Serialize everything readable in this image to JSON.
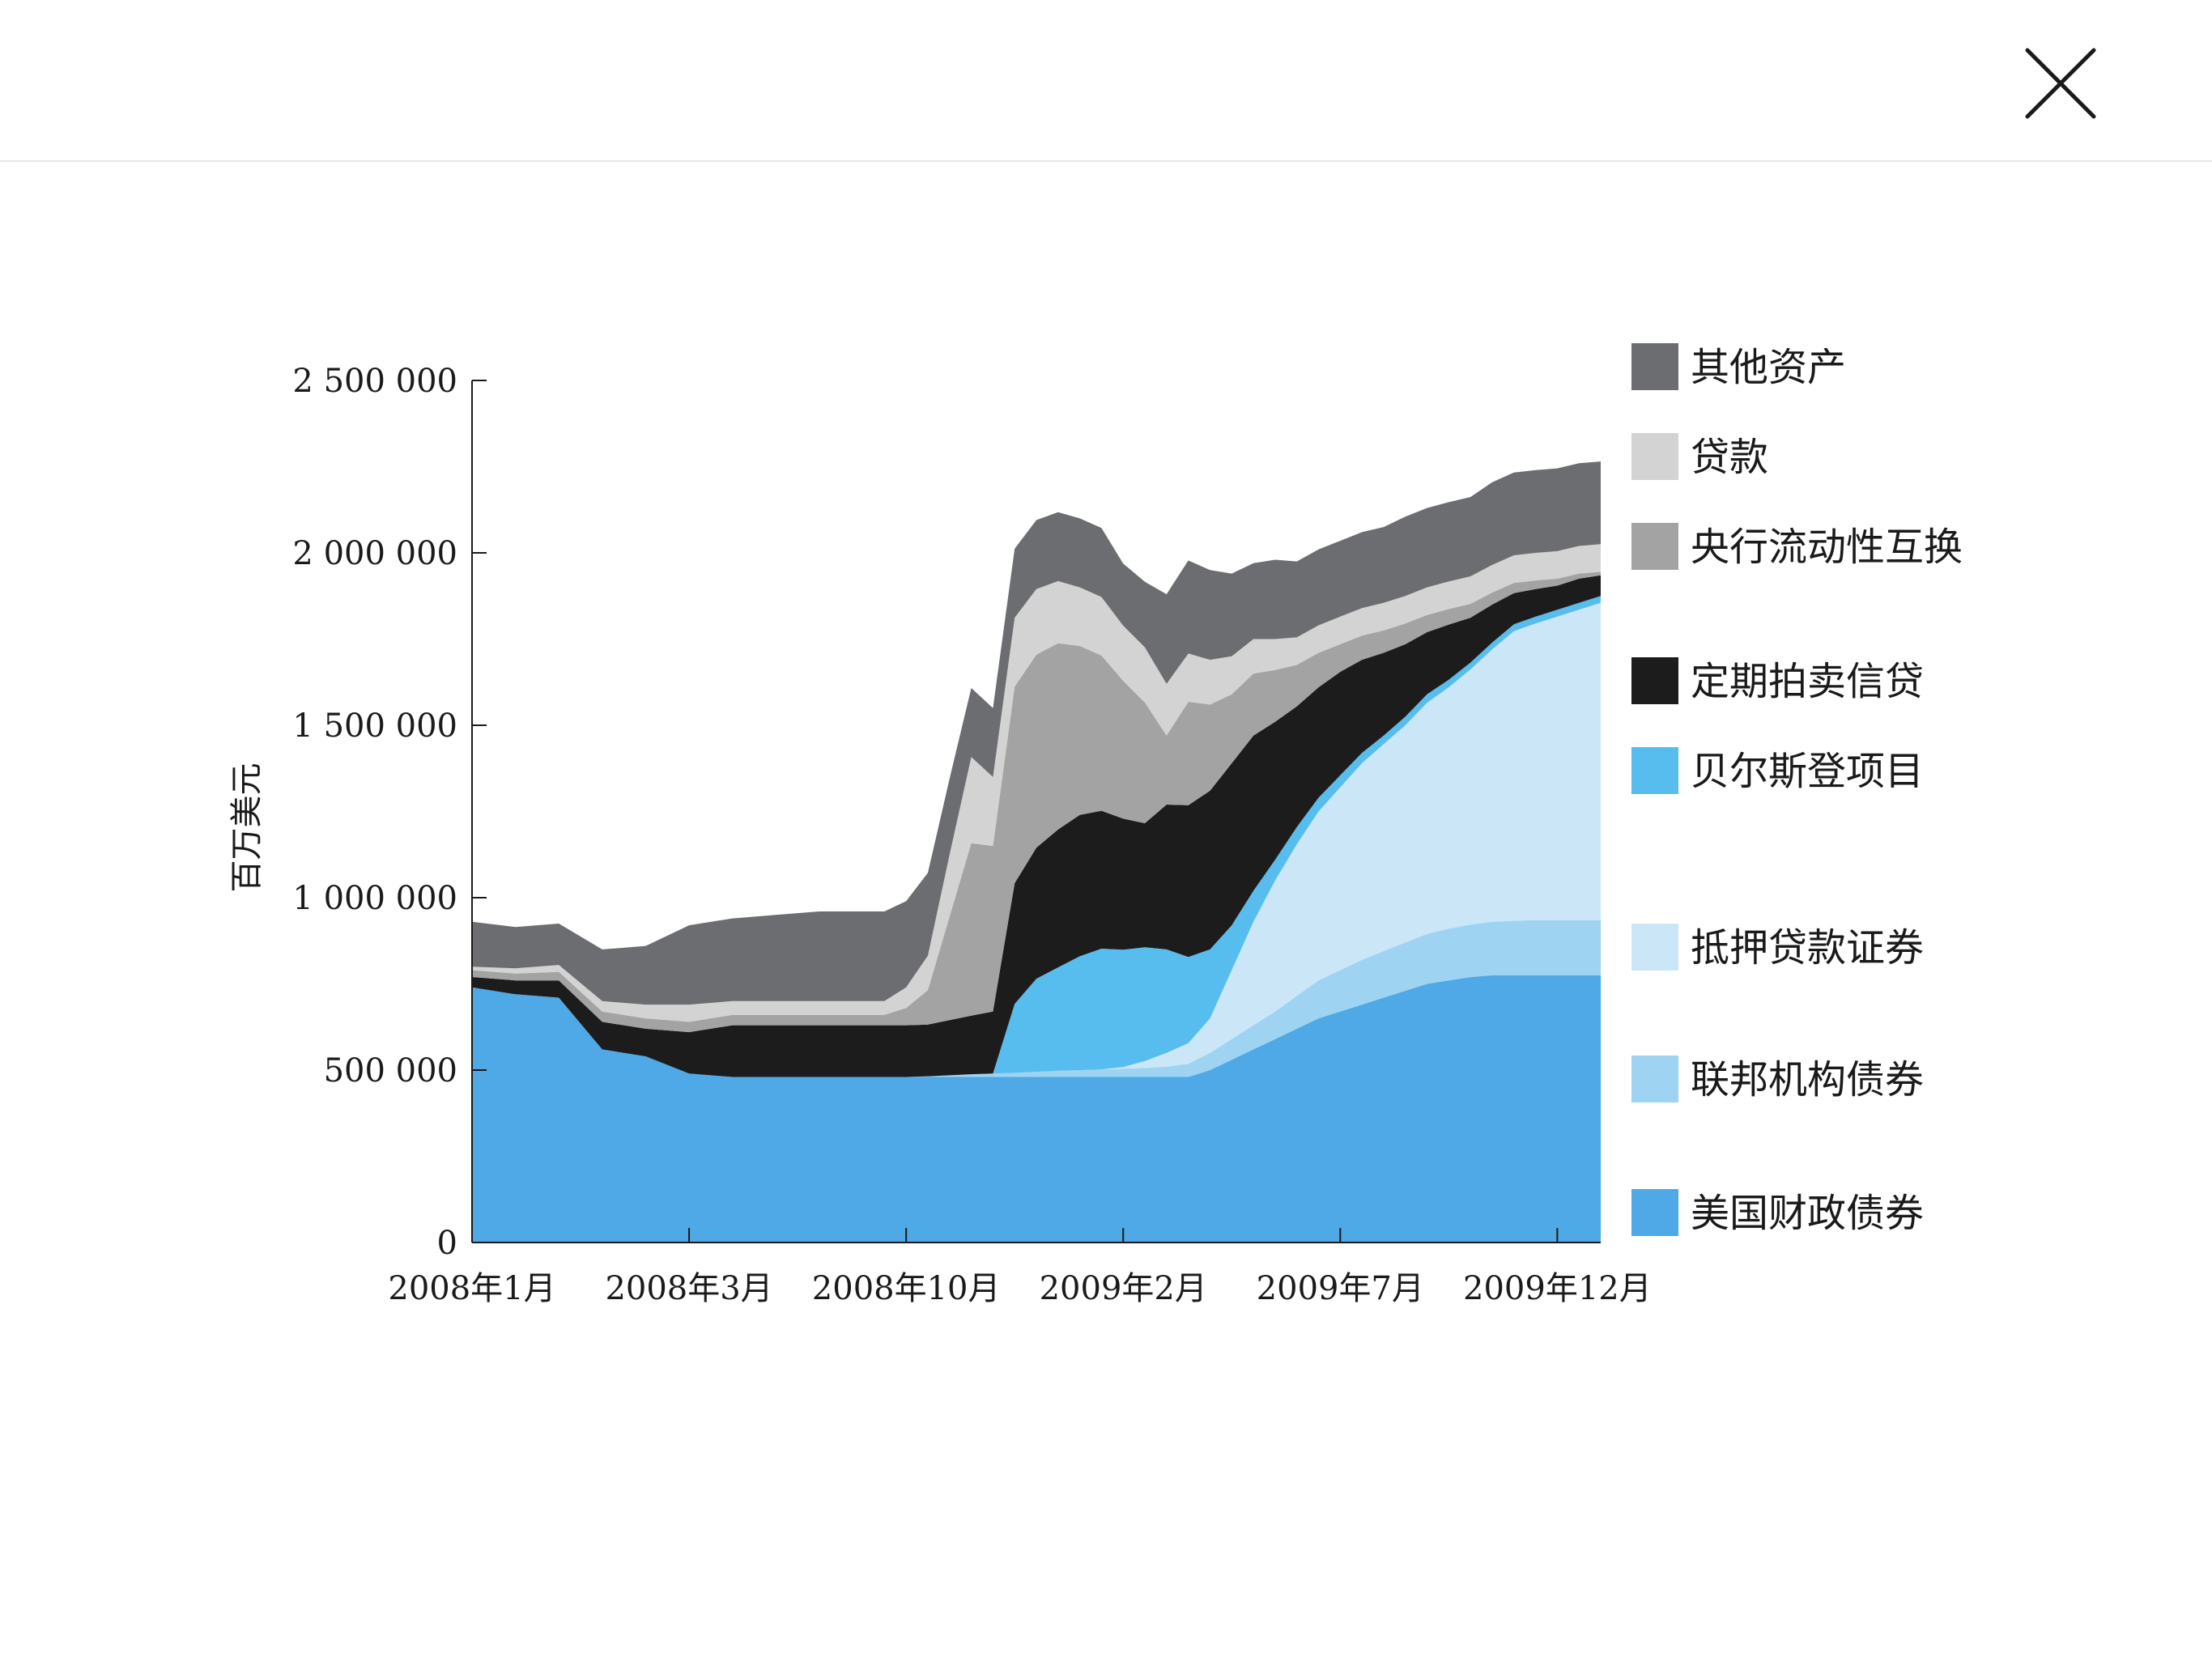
{
  "viewer": {
    "close_icon": "close-icon"
  },
  "chart_data": {
    "type": "area",
    "stacked": true,
    "title": "",
    "xlabel": "",
    "ylabel": "百万美元",
    "ylim": [
      0,
      2500000
    ],
    "yticks": [
      0,
      500000,
      1000000,
      1500000,
      2000000,
      2500000
    ],
    "ytick_labels": [
      "0",
      "500 000",
      "1 000 000",
      "1 500 000",
      "2 000 000",
      "2 500 000"
    ],
    "xlim": [
      0,
      104
    ],
    "xticks": [
      0,
      20,
      40,
      60,
      80,
      100
    ],
    "xtick_labels": [
      "2008年1月",
      "2008年3月",
      "2008年10月",
      "2009年2月",
      "2009年7月",
      "2009年12月"
    ],
    "x": [
      0,
      4,
      8,
      12,
      16,
      20,
      24,
      28,
      32,
      36,
      38,
      40,
      42,
      44,
      46,
      48,
      50,
      52,
      54,
      56,
      58,
      60,
      62,
      64,
      66,
      68,
      70,
      72,
      74,
      76,
      78,
      80,
      82,
      84,
      86,
      88,
      90,
      92,
      94,
      96,
      98,
      100,
      102,
      104
    ],
    "legend_position": "right",
    "grid": false,
    "series": [
      {
        "name": "美国财政债券",
        "color": "#4ea9e6",
        "values": [
          740000,
          720000,
          710000,
          560000,
          540000,
          490000,
          480000,
          480000,
          480000,
          480000,
          480000,
          480000,
          480000,
          480000,
          480000,
          480000,
          480000,
          480000,
          480000,
          480000,
          480000,
          480000,
          480000,
          480000,
          480000,
          500000,
          530000,
          560000,
          590000,
          620000,
          650000,
          670000,
          690000,
          710000,
          730000,
          750000,
          760000,
          770000,
          775000,
          775000,
          775000,
          775000,
          775000,
          775000
        ]
      },
      {
        "name": "联邦机构债券",
        "color": "#9ed3f2",
        "values": [
          0,
          0,
          0,
          0,
          0,
          0,
          0,
          0,
          0,
          0,
          0,
          0,
          2000,
          5000,
          8000,
          10000,
          12000,
          15000,
          18000,
          20000,
          22000,
          24000,
          26000,
          30000,
          38000,
          50000,
          60000,
          70000,
          80000,
          95000,
          110000,
          120000,
          130000,
          135000,
          140000,
          145000,
          150000,
          152000,
          155000,
          158000,
          160000,
          160000,
          160000,
          160000
        ]
      },
      {
        "name": "抵押贷款证券",
        "color": "#cbe7f7",
        "values": [
          0,
          0,
          0,
          0,
          0,
          0,
          0,
          0,
          0,
          0,
          0,
          0,
          0,
          0,
          0,
          0,
          0,
          0,
          0,
          0,
          0,
          5000,
          20000,
          40000,
          60000,
          100000,
          200000,
          300000,
          380000,
          440000,
          490000,
          530000,
          570000,
          600000,
          630000,
          670000,
          700000,
          740000,
          790000,
          840000,
          860000,
          880000,
          900000,
          920000
        ]
      },
      {
        "name": "贝尔斯登项目",
        "color": "#57bdef",
        "values": [
          0,
          0,
          0,
          0,
          0,
          0,
          0,
          0,
          0,
          0,
          0,
          0,
          0,
          0,
          0,
          0,
          200000,
          270000,
          300000,
          330000,
          350000,
          340000,
          330000,
          300000,
          250000,
          200000,
          130000,
          90000,
          60000,
          50000,
          40000,
          35000,
          30000,
          25000,
          25000,
          25000,
          22000,
          20000,
          20000,
          20000,
          20000,
          20000,
          20000,
          20000
        ]
      },
      {
        "name": "定期拍卖信贷",
        "color": "#1c1c1c",
        "values": [
          30000,
          40000,
          50000,
          80000,
          80000,
          120000,
          150000,
          150000,
          150000,
          150000,
          150000,
          150000,
          150000,
          160000,
          170000,
          180000,
          350000,
          380000,
          400000,
          410000,
          400000,
          380000,
          360000,
          420000,
          440000,
          460000,
          470000,
          450000,
          400000,
          350000,
          320000,
          300000,
          270000,
          240000,
          210000,
          180000,
          160000,
          130000,
          110000,
          90000,
          80000,
          70000,
          70000,
          60000
        ]
      },
      {
        "name": "央行流动性互换",
        "color": "#a3a3a3",
        "values": [
          20000,
          20000,
          25000,
          30000,
          30000,
          30000,
          30000,
          30000,
          30000,
          30000,
          30000,
          50000,
          100000,
          300000,
          500000,
          480000,
          570000,
          560000,
          540000,
          490000,
          450000,
          400000,
          350000,
          200000,
          300000,
          250000,
          200000,
          180000,
          150000,
          120000,
          100000,
          80000,
          70000,
          65000,
          60000,
          50000,
          45000,
          40000,
          35000,
          30000,
          25000,
          20000,
          15000,
          10000
        ]
      },
      {
        "name": "贷款",
        "color": "#d3d3d3",
        "values": [
          10000,
          15000,
          20000,
          30000,
          40000,
          50000,
          40000,
          40000,
          40000,
          40000,
          40000,
          60000,
          100000,
          180000,
          250000,
          200000,
          200000,
          190000,
          180000,
          170000,
          170000,
          160000,
          160000,
          150000,
          140000,
          130000,
          110000,
          100000,
          90000,
          80000,
          80000,
          80000,
          80000,
          80000,
          80000,
          80000,
          80000,
          80000,
          80000,
          80000,
          80000,
          80000,
          80000,
          80000
        ]
      },
      {
        "name": "其他资产",
        "color": "#6c6d70",
        "values": [
          130000,
          120000,
          120000,
          150000,
          170000,
          230000,
          240000,
          250000,
          260000,
          260000,
          260000,
          250000,
          240000,
          220000,
          200000,
          200000,
          200000,
          200000,
          200000,
          200000,
          200000,
          180000,
          190000,
          260000,
          270000,
          260000,
          240000,
          220000,
          230000,
          220000,
          220000,
          220000,
          220000,
          220000,
          230000,
          230000,
          230000,
          230000,
          240000,
          240000,
          240000,
          240000,
          240000,
          240000
        ]
      }
    ]
  }
}
